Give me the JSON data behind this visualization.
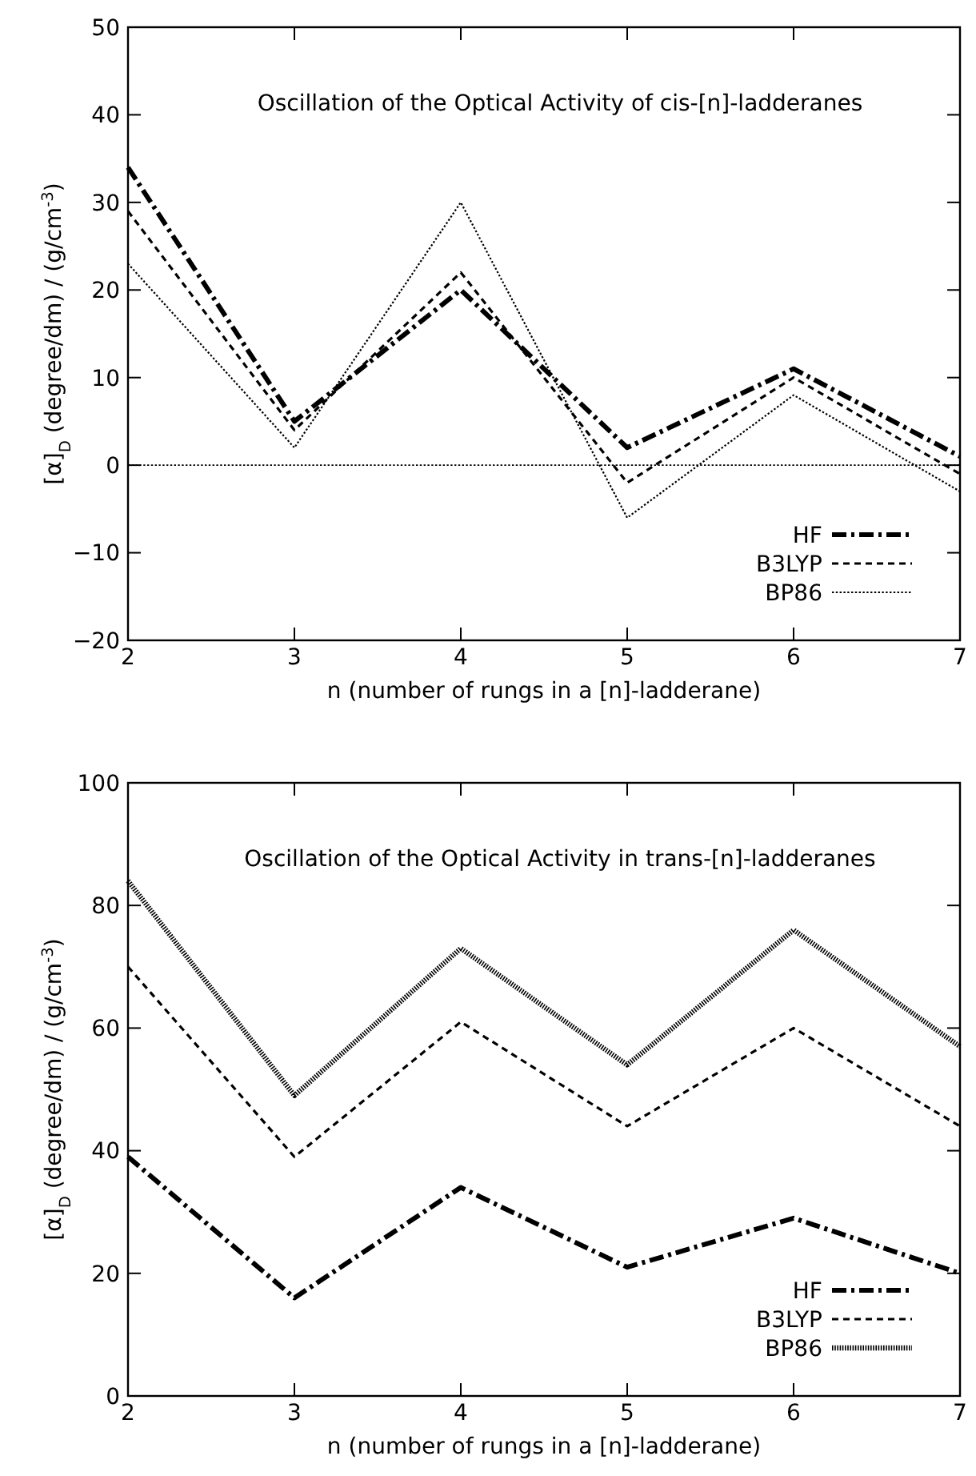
{
  "chart_data": [
    {
      "type": "line",
      "title": "Oscillation of the Optical Activity of cis-[n]-ladderanes",
      "xlabel": "n (number of rungs in a [n]-ladderane)",
      "ylabel": "[α]$_{D}$ (degree/dm) / (g/cm$^{-3}$)",
      "x": [
        2,
        3,
        4,
        5,
        6,
        7
      ],
      "xlim": [
        2,
        7
      ],
      "xticks": [
        2,
        3,
        4,
        5,
        6,
        7
      ],
      "ylim": [
        -20,
        50
      ],
      "yticks": [
        {
          "value": -20,
          "label": "−20"
        },
        {
          "value": -10,
          "label": "−10"
        },
        0,
        10,
        20,
        30,
        40,
        50
      ],
      "grid": false,
      "legend": "bottom right",
      "marker": "none",
      "ref_lines": [
        {
          "axis": "y",
          "value": 0,
          "line_style": "dotted",
          "color": "#000000"
        }
      ],
      "series": [
        {
          "name": "HF",
          "color": "#000000",
          "line_style": "dashdot",
          "values": [
            34,
            5,
            20,
            2,
            11,
            1
          ]
        },
        {
          "name": "B3LYP",
          "color": "#000000",
          "line_style": "dashed",
          "values": [
            29,
            4,
            22,
            -2,
            10,
            -1
          ]
        },
        {
          "name": "BP86",
          "color": "#000000",
          "line_style": "dotted",
          "values": [
            23,
            2,
            30,
            -6,
            8,
            -3
          ]
        }
      ]
    },
    {
      "type": "line",
      "title": "Oscillation of the Optical Activity in trans-[n]-ladderanes",
      "xlabel": "n (number of rungs in a [n]-ladderane)",
      "ylabel": "[α]$_{D}$ (degree/dm) / (g/cm$^{-3}$)",
      "x": [
        2,
        3,
        4,
        5,
        6,
        7
      ],
      "xlim": [
        2,
        7
      ],
      "xticks": [
        2,
        3,
        4,
        5,
        6,
        7
      ],
      "ylim": [
        0,
        100
      ],
      "yticks": [
        0,
        20,
        40,
        60,
        80,
        100
      ],
      "grid": false,
      "legend": "bottom right",
      "marker": "none",
      "series": [
        {
          "name": "HF",
          "color": "#000000",
          "line_style": "dashdot",
          "values": [
            39,
            16,
            34,
            21,
            29,
            20
          ]
        },
        {
          "name": "B3LYP",
          "color": "#000000",
          "line_style": "dashed",
          "values": [
            70,
            39,
            61,
            44,
            60,
            44
          ]
        },
        {
          "name": "BP86",
          "color": "#000000",
          "line_style": "dotted",
          "values": [
            84,
            49,
            73,
            54,
            76,
            57
          ]
        }
      ]
    }
  ]
}
